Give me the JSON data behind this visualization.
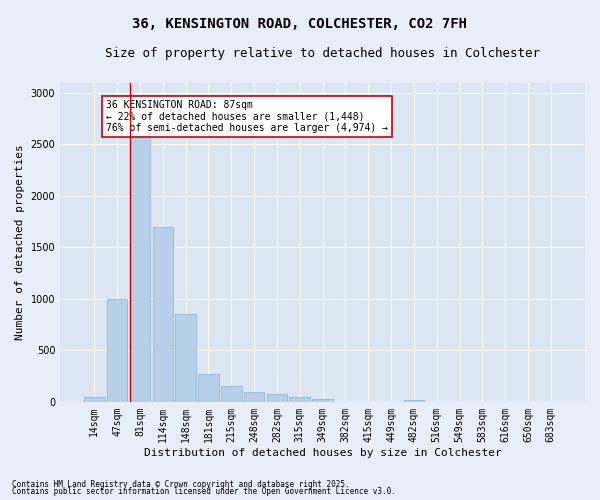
{
  "title": "36, KENSINGTON ROAD, COLCHESTER, CO2 7FH",
  "subtitle": "Size of property relative to detached houses in Colchester",
  "xlabel": "Distribution of detached houses by size in Colchester",
  "ylabel": "Number of detached properties",
  "categories": [
    "14sqm",
    "47sqm",
    "81sqm",
    "114sqm",
    "148sqm",
    "181sqm",
    "215sqm",
    "248sqm",
    "282sqm",
    "315sqm",
    "349sqm",
    "382sqm",
    "415sqm",
    "449sqm",
    "482sqm",
    "516sqm",
    "549sqm",
    "583sqm",
    "616sqm",
    "650sqm",
    "683sqm"
  ],
  "values": [
    50,
    1000,
    2600,
    1700,
    850,
    270,
    155,
    95,
    75,
    50,
    25,
    0,
    0,
    0,
    18,
    0,
    0,
    0,
    0,
    0,
    0
  ],
  "bar_color": "#b8cfe8",
  "bar_edge_color": "#8aafd4",
  "vline_color": "#cc0000",
  "annotation_text": "36 KENSINGTON ROAD: 87sqm\n← 22% of detached houses are smaller (1,448)\n76% of semi-detached houses are larger (4,974) →",
  "annotation_box_color": "#ffffff",
  "annotation_box_edge": "#cc0000",
  "footnote1": "Contains HM Land Registry data © Crown copyright and database right 2025.",
  "footnote2": "Contains public sector information licensed under the Open Government Licence v3.0.",
  "ylim": [
    0,
    3100
  ],
  "bg_color": "#e8eef7",
  "plot_bg_color": "#dce6f2",
  "title_fontsize": 10,
  "subtitle_fontsize": 9,
  "tick_fontsize": 7,
  "ylabel_fontsize": 8,
  "xlabel_fontsize": 8,
  "annotation_fontsize": 7,
  "footnote_fontsize": 5.5
}
